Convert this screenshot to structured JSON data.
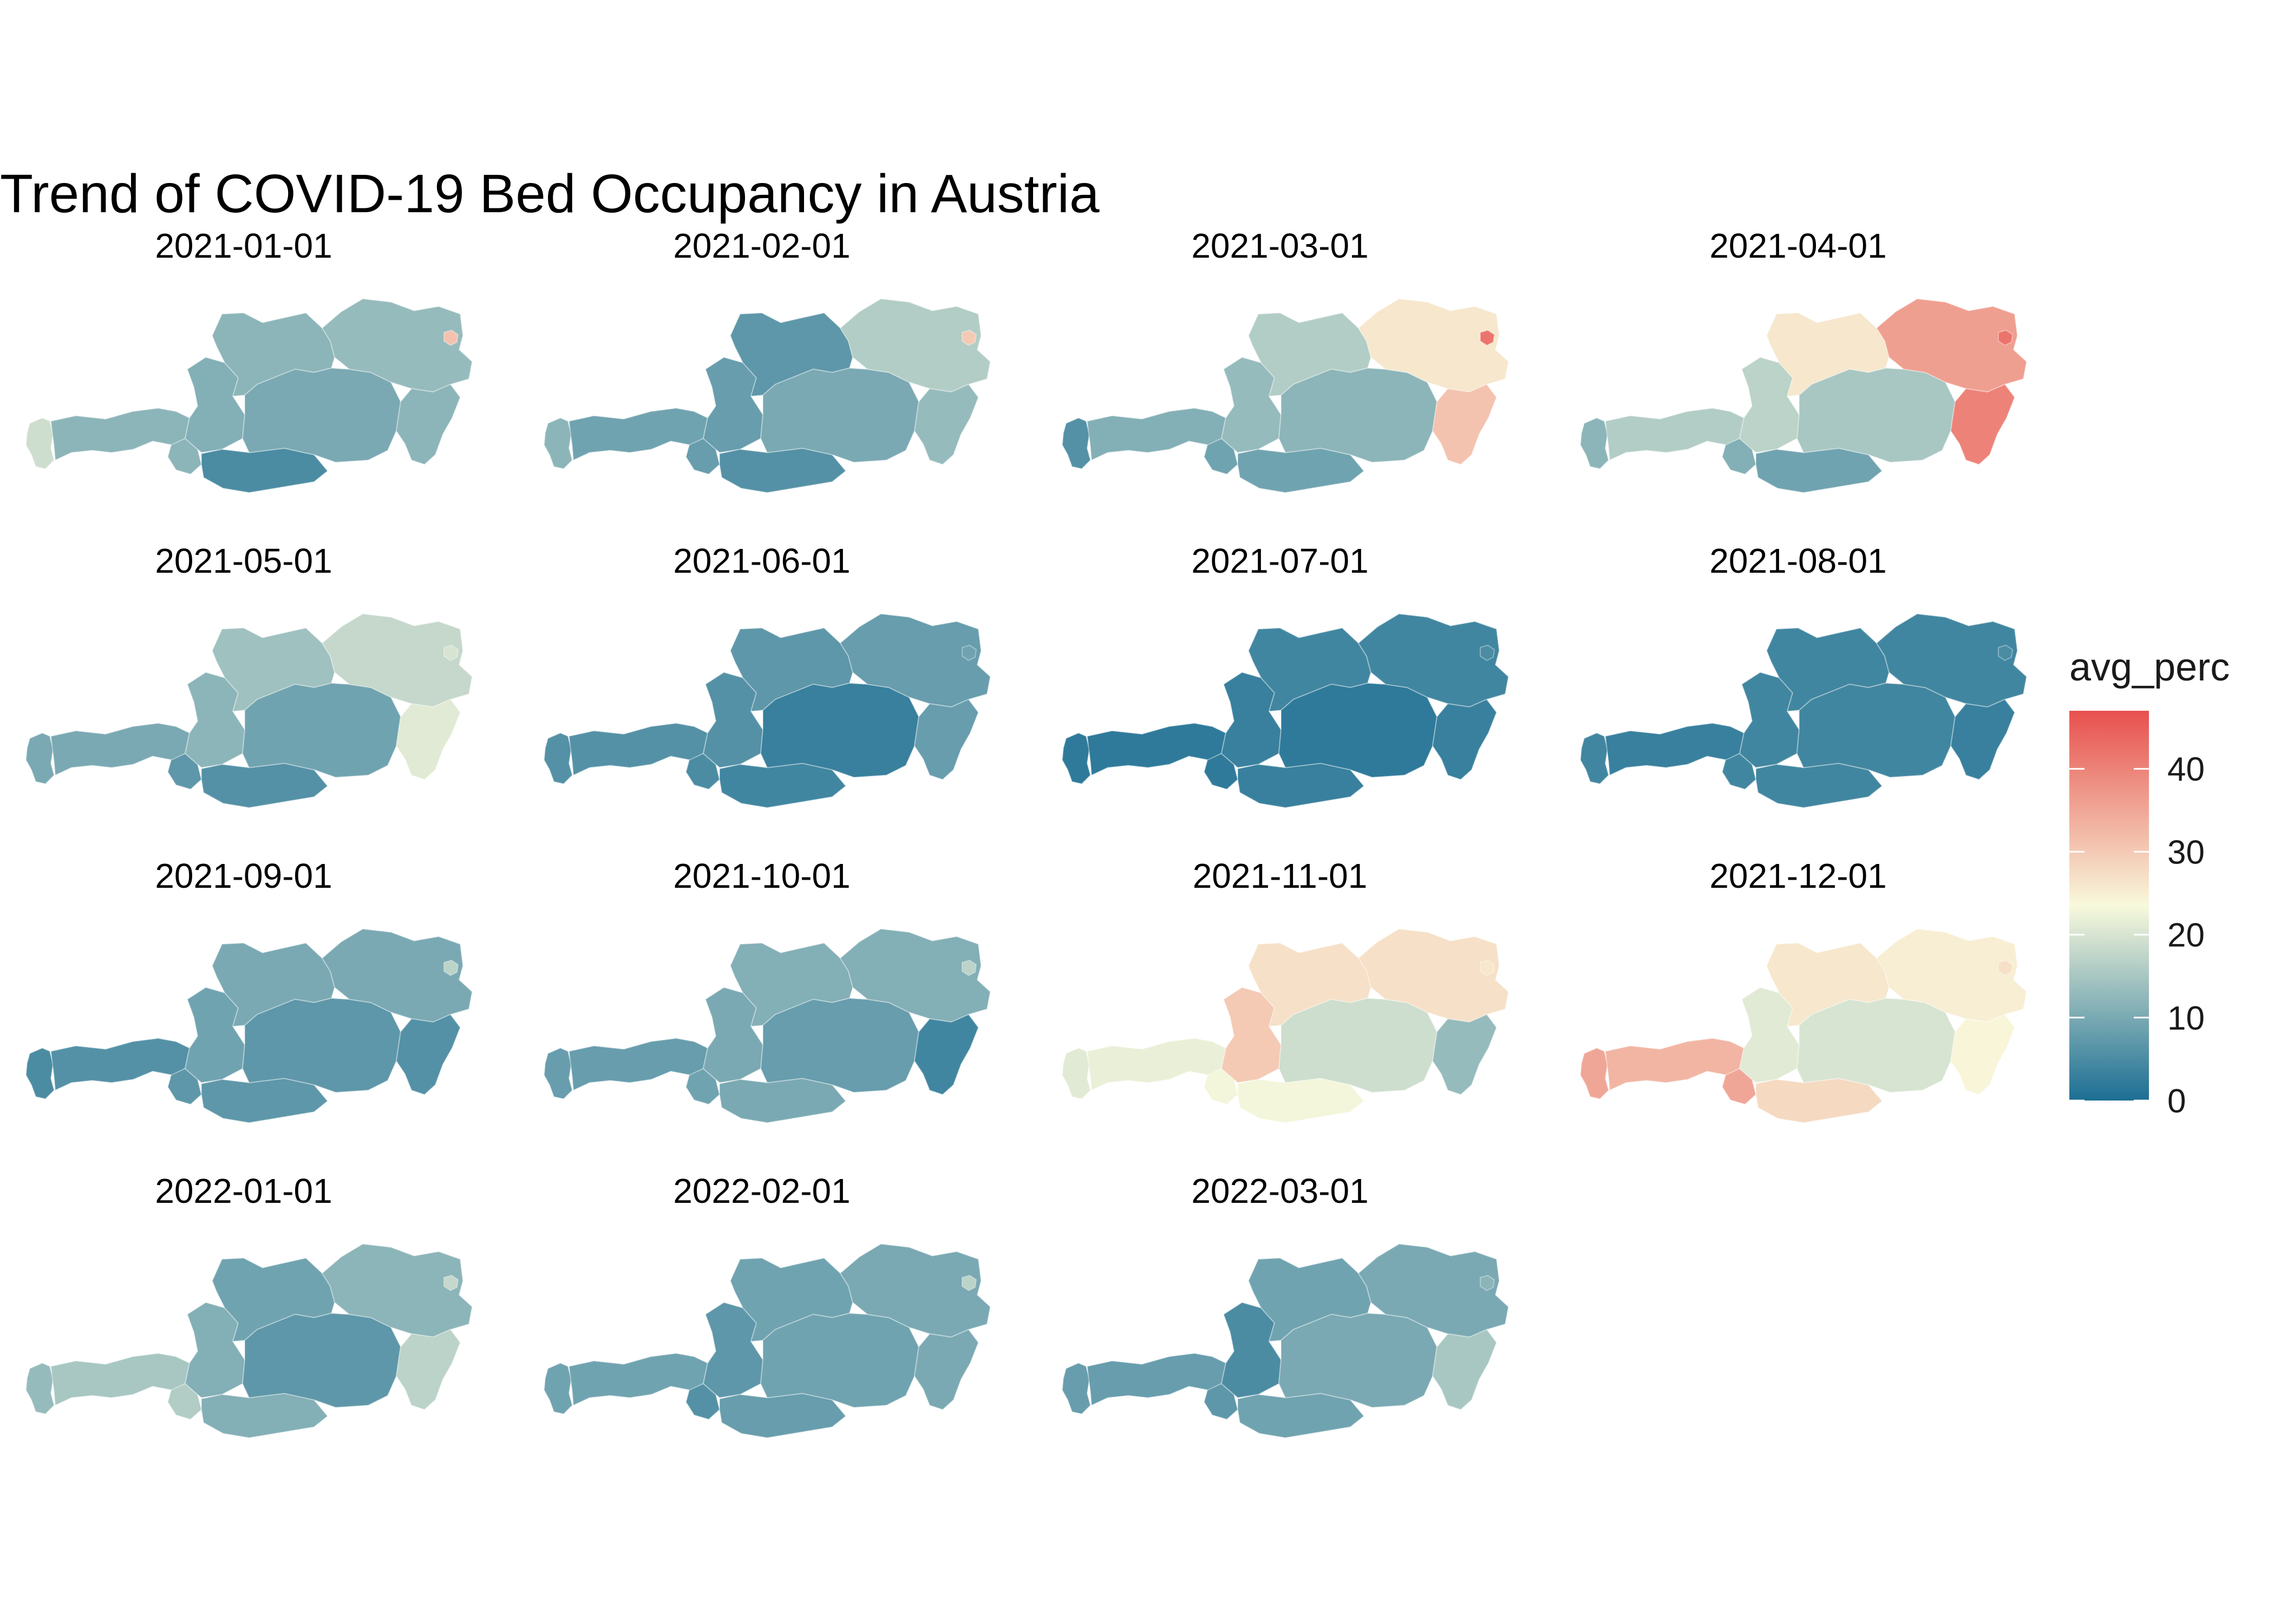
{
  "title": "Trend of COVID-19 Bed Occupancy in Austria",
  "legend": {
    "title": "avg_perc",
    "ticks": [
      "0",
      "10",
      "20",
      "30",
      "40"
    ],
    "tick_values": [
      0,
      10,
      20,
      30,
      40
    ],
    "range": [
      0,
      47
    ],
    "colors": [
      "#1c6e94",
      "#f8f9dc",
      "#e8504e"
    ],
    "midpoint": 23.5
  },
  "regions": [
    "Vorarlberg",
    "Tirol",
    "Osttirol",
    "Salzburg",
    "Oberösterreich",
    "Kärnten",
    "Steiermark",
    "Niederösterreich",
    "Wien",
    "Burgenland"
  ],
  "chart_data": {
    "type": "choropleth-facets",
    "value_name": "avg_perc",
    "regions": [
      "Vorarlberg",
      "Tirol",
      "Osttirol",
      "Salzburg",
      "Oberösterreich",
      "Kärnten",
      "Steiermark",
      "Niederösterreich",
      "Wien",
      "Burgenland"
    ],
    "panels": [
      {
        "label": "2021-01-01",
        "values": [
          19,
          12,
          12,
          11,
          12,
          5,
          10,
          13,
          31,
          12
        ]
      },
      {
        "label": "2021-02-01",
        "values": [
          12,
          9,
          8,
          8,
          7,
          6,
          10,
          16,
          30,
          13
        ]
      },
      {
        "label": "2021-03-01",
        "values": [
          6,
          11,
          9,
          13,
          16,
          9,
          12,
          26,
          42,
          31
        ]
      },
      {
        "label": "2021-04-01",
        "values": [
          12,
          16,
          11,
          17,
          26,
          9,
          15,
          36,
          42,
          40
        ]
      },
      {
        "label": "2021-05-01",
        "values": [
          10,
          10,
          7,
          12,
          14,
          6,
          9,
          18,
          20,
          21
        ]
      },
      {
        "label": "2021-06-01",
        "values": [
          6,
          6,
          5,
          6,
          7,
          4,
          3,
          8,
          9,
          8
        ]
      },
      {
        "label": "2021-07-01",
        "values": [
          2,
          2,
          2,
          3,
          4,
          3,
          2,
          4,
          5,
          3
        ]
      },
      {
        "label": "2021-08-01",
        "values": [
          4,
          3,
          4,
          4,
          4,
          4,
          4,
          4,
          5,
          3
        ]
      },
      {
        "label": "2021-09-01",
        "values": [
          5,
          6,
          7,
          9,
          10,
          7,
          7,
          10,
          17,
          6
        ]
      },
      {
        "label": "2021-10-01",
        "values": [
          8,
          8,
          9,
          10,
          11,
          10,
          8,
          11,
          17,
          4
        ]
      },
      {
        "label": "2021-11-01",
        "values": [
          21,
          22,
          23,
          30,
          27,
          23,
          19,
          27,
          26,
          13
        ]
      },
      {
        "label": "2021-12-01",
        "values": [
          35,
          33,
          35,
          21,
          26,
          28,
          20,
          25,
          27,
          24
        ]
      },
      {
        "label": "2022-01-01",
        "values": [
          13,
          15,
          16,
          11,
          9,
          11,
          7,
          12,
          18,
          17
        ]
      },
      {
        "label": "2022-02-01",
        "values": [
          9,
          9,
          6,
          7,
          9,
          8,
          9,
          10,
          17,
          10
        ]
      },
      {
        "label": "2022-03-01",
        "values": [
          8,
          8,
          7,
          5,
          9,
          9,
          10,
          10,
          12,
          15
        ]
      }
    ]
  }
}
